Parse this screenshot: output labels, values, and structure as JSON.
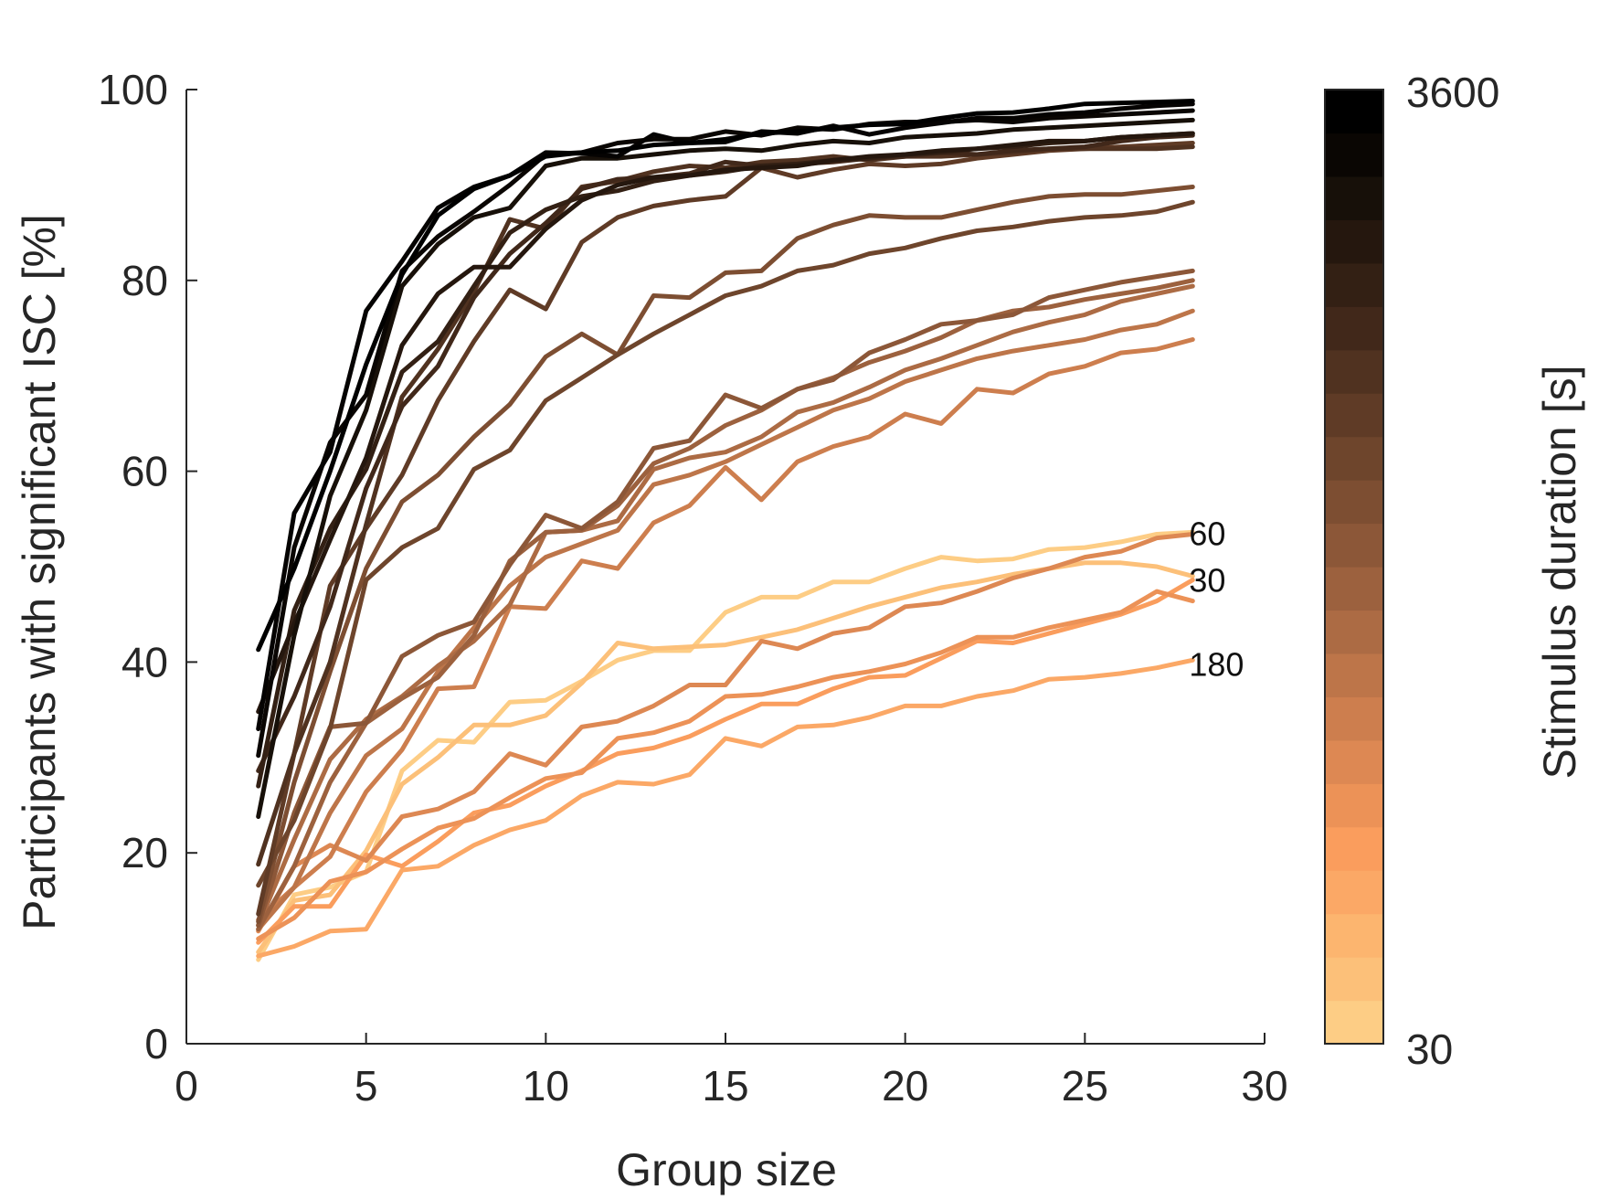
{
  "chart_data": {
    "type": "line",
    "title": "",
    "xlabel": "Group size",
    "ylabel": "Participants with significant ISC [%]",
    "xlim": [
      0,
      30
    ],
    "ylim": [
      0,
      100
    ],
    "xticks": [
      "0",
      "5",
      "10",
      "15",
      "20",
      "25",
      "30"
    ],
    "yticks": [
      "0",
      "20",
      "40",
      "60",
      "80",
      "100"
    ],
    "grid": false,
    "x": [
      2,
      3,
      4,
      5,
      6,
      7,
      8,
      9,
      10,
      11,
      12,
      13,
      14,
      15,
      16,
      17,
      18,
      19,
      20,
      21,
      22,
      23,
      24,
      25,
      26,
      27,
      28
    ],
    "colorbar": {
      "label": "Stimulus duration [s]",
      "min_label": "30",
      "max_label": "3600",
      "colors_bottom_to_top": [
        "#fdcd85",
        "#fcc079",
        "#fcb56f",
        "#fba866",
        "#fa9d5d",
        "#ec9257",
        "#dd8853",
        "#cd7e4e",
        "#bd7549",
        "#ac6b44",
        "#9c613e",
        "#8c5738",
        "#7d4e32",
        "#6e452c",
        "#5f3b26",
        "#503220",
        "#41281a",
        "#332014",
        "#25170e",
        "#171009",
        "#0a0603",
        "#000000"
      ]
    },
    "annotations": [
      {
        "text": "60",
        "x": 28,
        "y": 53.5
      },
      {
        "text": "30",
        "x": 28,
        "y": 48.6
      },
      {
        "text": "180",
        "x": 28,
        "y": 39.8
      }
    ],
    "series": [
      {
        "color": "#000000",
        "values": [
          41.3,
          49.8,
          60.0,
          71.2,
          80.6,
          86.8,
          89.6,
          91.0,
          93.0,
          93.4,
          93.6,
          94.2,
          94.4,
          94.8,
          95.4,
          95.6,
          96.0,
          96.3,
          96.4,
          97.0,
          97.5,
          97.6,
          98.0,
          98.5,
          98.6,
          98.7,
          98.8
        ]
      },
      {
        "color": "#050302",
        "values": [
          33.0,
          55.6,
          62.0,
          76.8,
          82.0,
          87.6,
          89.8,
          91.0,
          93.4,
          93.3,
          93.0,
          95.3,
          94.4,
          94.5,
          95.6,
          95.4,
          96.2,
          95.3,
          96.0,
          96.5,
          97.0,
          97.0,
          97.4,
          97.6,
          98.0,
          98.3,
          98.5
        ]
      },
      {
        "color": "#0a0603",
        "values": [
          30.2,
          52.0,
          63.0,
          68.0,
          81.0,
          84.6,
          87.2,
          90.0,
          93.2,
          93.4,
          94.4,
          94.8,
          94.8,
          95.6,
          95.2,
          96.0,
          95.8,
          96.4,
          96.6,
          96.6,
          96.8,
          96.6,
          97.0,
          97.2,
          97.4,
          97.6,
          97.8
        ]
      },
      {
        "color": "#171009",
        "values": [
          23.8,
          42.8,
          57.4,
          66.4,
          79.4,
          83.8,
          86.6,
          87.6,
          92.0,
          92.8,
          92.8,
          93.2,
          93.6,
          93.8,
          93.6,
          94.2,
          94.6,
          94.4,
          95.0,
          95.2,
          95.4,
          95.8,
          96.0,
          96.2,
          96.4,
          96.6,
          96.8
        ]
      },
      {
        "color": "#25170e",
        "values": [
          34.8,
          44.0,
          52.8,
          61.4,
          73.2,
          78.6,
          81.4,
          81.4,
          85.4,
          88.4,
          90.0,
          90.8,
          91.0,
          91.6,
          91.8,
          92.0,
          92.6,
          93.0,
          93.2,
          93.6,
          93.8,
          94.2,
          94.6,
          94.6,
          95.0,
          95.2,
          95.4
        ]
      },
      {
        "color": "#332014",
        "values": [
          27.0,
          45.4,
          54.0,
          60.2,
          70.4,
          73.6,
          79.4,
          85.0,
          87.4,
          88.8,
          89.4,
          90.4,
          91.0,
          91.4,
          92.0,
          92.2,
          92.6,
          92.8,
          93.2,
          93.4,
          93.8,
          94.0,
          94.4,
          94.6,
          95.0,
          95.2,
          95.4
        ]
      },
      {
        "color": "#41281a",
        "values": [
          28.6,
          36.4,
          45.8,
          58.2,
          66.8,
          71.0,
          78.2,
          82.8,
          86.0,
          89.6,
          90.6,
          90.8,
          91.2,
          92.4,
          92.0,
          92.2,
          92.4,
          92.8,
          93.0,
          93.4,
          93.2,
          93.6,
          93.8,
          94.0,
          94.6,
          95.0,
          95.2
        ]
      },
      {
        "color": "#503220",
        "values": [
          18.8,
          30.4,
          40.0,
          54.4,
          67.8,
          72.8,
          78.8,
          86.4,
          85.4,
          89.8,
          90.4,
          91.4,
          92.0,
          91.8,
          92.4,
          92.6,
          93.0,
          92.6,
          93.0,
          93.0,
          93.2,
          93.4,
          93.8,
          93.8,
          93.8,
          93.8,
          94.0
        ]
      },
      {
        "color": "#5f3b26",
        "values": [
          13.6,
          30.4,
          48.0,
          54.0,
          59.6,
          67.4,
          73.6,
          79.0,
          77.0,
          84.0,
          86.6,
          87.8,
          88.4,
          88.8,
          91.8,
          90.8,
          91.6,
          92.2,
          92.0,
          92.2,
          92.8,
          93.2,
          93.6,
          93.8,
          94.0,
          94.2,
          94.4
        ]
      },
      {
        "color": "#6e452c",
        "values": [
          16.6,
          23.4,
          33.0,
          48.6,
          52.0,
          54.0,
          60.2,
          62.2,
          67.4,
          69.8,
          72.2,
          74.4,
          76.4,
          78.4,
          79.4,
          81.0,
          81.6,
          82.8,
          83.4,
          84.4,
          85.2,
          85.6,
          86.2,
          86.6,
          86.8,
          87.2,
          88.2
        ]
      },
      {
        "color": "#7d4e32",
        "values": [
          12.8,
          27.4,
          39.0,
          49.8,
          56.8,
          59.6,
          63.6,
          67.0,
          72.0,
          74.4,
          72.2,
          78.4,
          78.2,
          80.8,
          81.0,
          84.4,
          85.8,
          86.8,
          86.6,
          86.6,
          87.4,
          88.2,
          88.8,
          89.0,
          89.0,
          89.4,
          89.8
        ]
      },
      {
        "color": "#8c5738",
        "values": [
          12.4,
          24.2,
          33.2,
          33.6,
          40.6,
          42.8,
          44.2,
          50.2,
          55.4,
          54.0,
          56.8,
          62.4,
          63.2,
          68.0,
          66.6,
          68.6,
          69.6,
          72.4,
          73.8,
          75.4,
          75.8,
          76.4,
          78.2,
          79.0,
          79.8,
          80.4,
          81.0
        ]
      },
      {
        "color": "#9c613e",
        "values": [
          12.0,
          18.6,
          27.4,
          33.6,
          36.2,
          38.4,
          42.8,
          50.6,
          53.6,
          53.8,
          56.4,
          60.8,
          62.4,
          64.8,
          66.4,
          68.6,
          69.8,
          71.4,
          72.6,
          74.0,
          75.8,
          76.8,
          77.2,
          78.0,
          78.6,
          79.2,
          80.0
        ]
      },
      {
        "color": "#ac6b44",
        "values": [
          12.4,
          21.4,
          29.8,
          34.0,
          36.4,
          39.6,
          42.2,
          46.0,
          53.6,
          53.8,
          54.8,
          60.2,
          61.4,
          62.0,
          63.6,
          66.2,
          67.2,
          68.8,
          70.6,
          71.8,
          73.2,
          74.6,
          75.6,
          76.4,
          77.8,
          78.6,
          79.4
        ]
      },
      {
        "color": "#bd7549",
        "values": [
          12.0,
          16.4,
          24.2,
          30.2,
          33.0,
          39.0,
          43.6,
          48.0,
          51.0,
          52.4,
          53.8,
          58.6,
          59.6,
          61.0,
          62.8,
          64.6,
          66.4,
          67.6,
          69.4,
          70.6,
          71.8,
          72.6,
          73.2,
          73.8,
          74.8,
          75.4,
          76.8
        ]
      },
      {
        "color": "#cd7e4e",
        "values": [
          13.0,
          16.4,
          19.6,
          26.4,
          30.8,
          37.2,
          37.4,
          45.8,
          45.6,
          50.6,
          49.8,
          54.6,
          56.4,
          60.4,
          57.0,
          61.0,
          62.6,
          63.6,
          66.0,
          65.0,
          68.6,
          68.2,
          70.2,
          71.0,
          72.4,
          72.8,
          73.8
        ]
      },
      {
        "color": "#dd8853",
        "values": [
          11.8,
          18.6,
          20.8,
          19.2,
          23.8,
          24.6,
          26.4,
          30.4,
          29.2,
          33.2,
          33.8,
          35.4,
          37.6,
          37.6,
          42.2,
          41.4,
          43.0,
          43.6,
          45.8,
          46.2,
          47.4,
          48.8,
          49.8,
          51.0,
          51.6,
          53.0,
          53.4
        ]
      },
      {
        "color": "#ec9257",
        "values": [
          11.0,
          13.2,
          17.0,
          18.0,
          20.4,
          22.6,
          23.6,
          25.8,
          27.8,
          28.4,
          32.0,
          32.6,
          33.8,
          36.4,
          36.6,
          37.4,
          38.4,
          39.0,
          39.8,
          41.0,
          42.6,
          42.6,
          43.6,
          44.4,
          45.2,
          47.4,
          46.4
        ]
      },
      {
        "color": "#fa9d5d",
        "values": [
          10.6,
          14.4,
          14.4,
          19.8,
          18.6,
          21.2,
          24.2,
          25.0,
          27.0,
          28.6,
          30.4,
          31.0,
          32.2,
          34.0,
          35.6,
          35.6,
          37.2,
          38.4,
          38.6,
          40.4,
          42.2,
          42.0,
          43.0,
          44.0,
          45.0,
          46.4,
          48.6
        ]
      },
      {
        "color": "#fba866",
        "values": [
          9.2,
          10.2,
          11.8,
          12.0,
          18.2,
          18.6,
          20.8,
          22.4,
          23.4,
          26.0,
          27.4,
          27.2,
          28.2,
          32.0,
          31.2,
          33.2,
          33.4,
          34.2,
          35.4,
          35.4,
          36.4,
          37.0,
          38.2,
          38.4,
          38.8,
          39.4,
          40.2
        ]
      },
      {
        "color": "#fcc079",
        "values": [
          9.6,
          15.0,
          15.6,
          20.2,
          27.2,
          30.0,
          33.4,
          33.4,
          34.4,
          37.8,
          42.0,
          41.4,
          41.6,
          41.8,
          42.6,
          43.4,
          44.6,
          45.8,
          46.8,
          47.8,
          48.4,
          49.2,
          49.8,
          50.4,
          50.4,
          50.0,
          49.0
        ]
      },
      {
        "color": "#fdcd85",
        "values": [
          8.8,
          15.6,
          16.4,
          18.0,
          28.6,
          31.8,
          31.6,
          35.8,
          36.0,
          38.0,
          40.2,
          41.2,
          41.2,
          45.2,
          46.8,
          46.8,
          48.4,
          48.4,
          49.8,
          51.0,
          50.6,
          50.8,
          51.8,
          52.0,
          52.6,
          53.4,
          53.6
        ]
      }
    ]
  }
}
